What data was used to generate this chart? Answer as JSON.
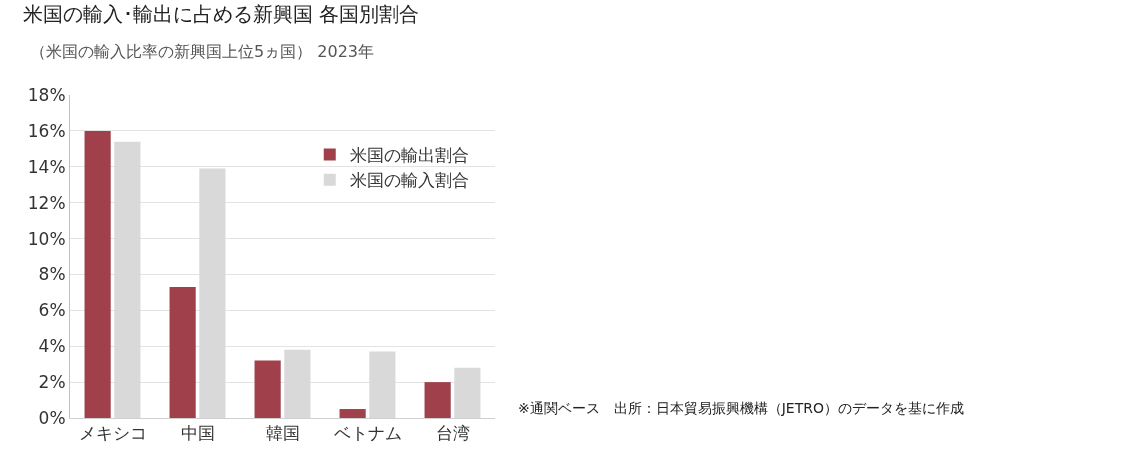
{
  "chart_data": {
    "type": "bar",
    "title": "米国の輸入･輸出に占める新興国 各国別割合",
    "subtitle": "（米国の輸入比率の新興国上位5ヵ国） 2023年",
    "categories": [
      "メキシコ",
      "中国",
      "韓国",
      "ベトナム",
      "台湾"
    ],
    "series": [
      {
        "name": "米国の輸出割合",
        "color": "#a0404a",
        "values": [
          16.0,
          7.3,
          3.2,
          0.5,
          2.0
        ]
      },
      {
        "name": "米国の輸入割合",
        "color": "#d9d9d9",
        "values": [
          15.4,
          13.9,
          3.8,
          3.7,
          2.8
        ]
      }
    ],
    "ylim": [
      0,
      18
    ],
    "yticks": [
      {
        "value": 0,
        "label": "0%"
      },
      {
        "value": 2,
        "label": "2%"
      },
      {
        "value": 4,
        "label": "4%"
      },
      {
        "value": 6,
        "label": "6%"
      },
      {
        "value": 8,
        "label": "8%"
      },
      {
        "value": 10,
        "label": "10%"
      },
      {
        "value": 12,
        "label": "12%"
      },
      {
        "value": 14,
        "label": "14%"
      },
      {
        "value": 16,
        "label": "16%"
      },
      {
        "value": 18,
        "label": "18%"
      }
    ],
    "grid": "y",
    "legend": "top right",
    "annotations": [
      "※通関ベース　出所：日本貿易振興機構（JETRO）のデータを基に作成"
    ]
  }
}
